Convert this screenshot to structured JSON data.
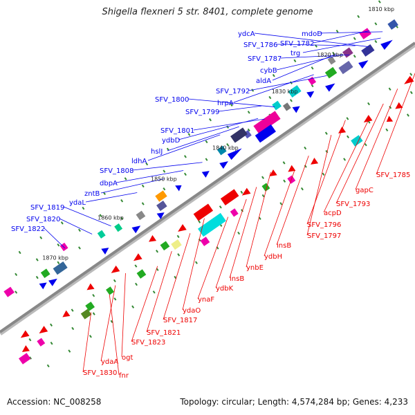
{
  "title": "Shigella flexneri 5 str. 8401, complete genome",
  "footer": {
    "accession": "Accession: NC_008258",
    "summary": "Topology: circular; Length: 4,574,284 bp; Genes: 4,233"
  },
  "colors": {
    "forward": "#0000ee",
    "reverse": "#ee0000",
    "backbone": "#888888",
    "tick": "#338833"
  },
  "kbp_ticks": [
    "1810 kbp",
    "1820 kbp",
    "1830 kbp",
    "1840 kbp",
    "1850 kbp",
    "1860 kbp",
    "1870 kbp"
  ],
  "forward_labels": [
    "ydcA",
    "mdoD",
    "SFV_1786",
    "SFV_1782",
    "trg",
    "SFV_1787",
    "cybB",
    "aldA",
    "SFV_1792",
    "SFV_1800",
    "hrpA",
    "SFV_1799",
    "SFV_1801",
    "ydbD",
    "hslJ",
    "ldhA",
    "SFV_1808",
    "dbpA",
    "zntB",
    "ydaL",
    "SFV_1819",
    "SFV_1820",
    "SFV_1822"
  ],
  "reverse_labels": [
    "SFV_1785",
    "gapC",
    "SFV_1793",
    "acpD",
    "SFV_1796",
    "SFV_1797",
    "insB",
    "ydbH",
    "ynbE",
    "insB",
    "ydbK",
    "ynaF",
    "ydaO",
    "SFV_1817",
    "SFV_1821",
    "SFV_1823",
    "ogt",
    "ydaA",
    "fnr",
    "SFV_1830"
  ]
}
